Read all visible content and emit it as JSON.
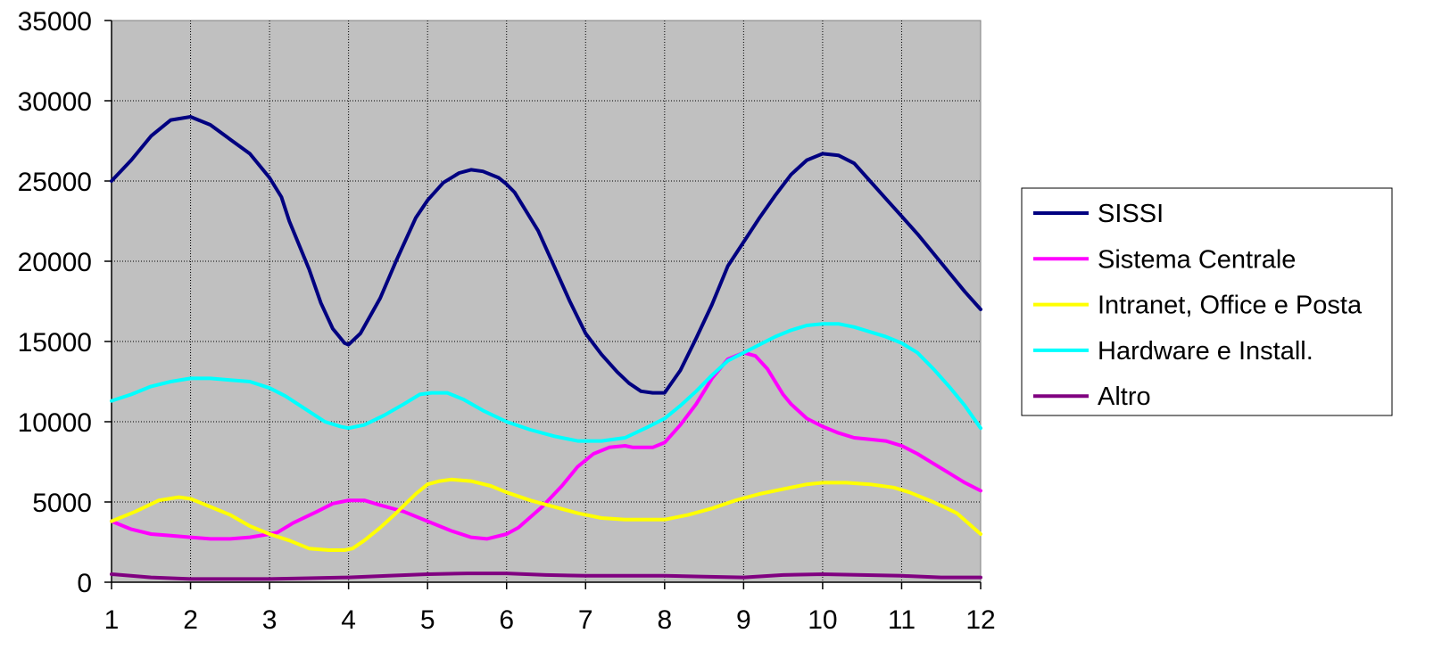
{
  "chart_data": {
    "type": "line",
    "title": "",
    "xlabel": "",
    "ylabel": "",
    "x": [
      1,
      2,
      3,
      4,
      5,
      6,
      7,
      8,
      9,
      10,
      11,
      12
    ],
    "x_ticks": [
      "1",
      "2",
      "3",
      "4",
      "5",
      "6",
      "7",
      "8",
      "9",
      "10",
      "11",
      "12"
    ],
    "ylim": [
      0,
      35000
    ],
    "y_ticks": [
      "0",
      "5000",
      "10000",
      "15000",
      "20000",
      "25000",
      "30000",
      "35000"
    ],
    "grid": true,
    "legend_position": "right",
    "background_color": "#c0c0c0",
    "series": [
      {
        "name": "SISSI",
        "color": "#000080",
        "points": [
          [
            1,
            25000
          ],
          [
            1.25,
            26300
          ],
          [
            1.5,
            27800
          ],
          [
            1.75,
            28800
          ],
          [
            2,
            29000
          ],
          [
            2.25,
            28500
          ],
          [
            2.5,
            27600
          ],
          [
            2.75,
            26700
          ],
          [
            3,
            25200
          ],
          [
            3.15,
            24000
          ],
          [
            3.25,
            22500
          ],
          [
            3.5,
            19500
          ],
          [
            3.65,
            17400
          ],
          [
            3.8,
            15800
          ],
          [
            3.95,
            14900
          ],
          [
            4,
            14800
          ],
          [
            4.15,
            15500
          ],
          [
            4.4,
            17700
          ],
          [
            4.6,
            20000
          ],
          [
            4.85,
            22700
          ],
          [
            5,
            23800
          ],
          [
            5.2,
            24900
          ],
          [
            5.4,
            25500
          ],
          [
            5.55,
            25700
          ],
          [
            5.7,
            25600
          ],
          [
            5.9,
            25200
          ],
          [
            6,
            24800
          ],
          [
            6.1,
            24300
          ],
          [
            6.4,
            21900
          ],
          [
            6.6,
            19700
          ],
          [
            6.8,
            17500
          ],
          [
            7,
            15500
          ],
          [
            7.2,
            14200
          ],
          [
            7.4,
            13100
          ],
          [
            7.55,
            12400
          ],
          [
            7.7,
            11900
          ],
          [
            7.85,
            11800
          ],
          [
            8,
            11800
          ],
          [
            8.2,
            13200
          ],
          [
            8.4,
            15200
          ],
          [
            8.6,
            17300
          ],
          [
            8.8,
            19700
          ],
          [
            9,
            21200
          ],
          [
            9.2,
            22700
          ],
          [
            9.4,
            24100
          ],
          [
            9.6,
            25400
          ],
          [
            9.8,
            26300
          ],
          [
            10,
            26700
          ],
          [
            10.2,
            26600
          ],
          [
            10.4,
            26100
          ],
          [
            10.6,
            25000
          ],
          [
            10.8,
            23900
          ],
          [
            11,
            22800
          ],
          [
            11.2,
            21700
          ],
          [
            11.4,
            20500
          ],
          [
            11.6,
            19300
          ],
          [
            11.8,
            18100
          ],
          [
            12,
            17000
          ]
        ]
      },
      {
        "name": "Sistema Centrale",
        "color": "#ff00ff",
        "points": [
          [
            1,
            3800
          ],
          [
            1.25,
            3300
          ],
          [
            1.5,
            3000
          ],
          [
            1.75,
            2900
          ],
          [
            2,
            2800
          ],
          [
            2.25,
            2700
          ],
          [
            2.5,
            2700
          ],
          [
            2.75,
            2800
          ],
          [
            3,
            3000
          ],
          [
            3.1,
            3100
          ],
          [
            3.3,
            3700
          ],
          [
            3.6,
            4400
          ],
          [
            3.8,
            4900
          ],
          [
            4,
            5100
          ],
          [
            4.2,
            5100
          ],
          [
            4.4,
            4800
          ],
          [
            4.7,
            4400
          ],
          [
            5,
            3800
          ],
          [
            5.3,
            3200
          ],
          [
            5.55,
            2800
          ],
          [
            5.75,
            2700
          ],
          [
            6,
            3000
          ],
          [
            6.15,
            3400
          ],
          [
            6.45,
            4700
          ],
          [
            6.7,
            6000
          ],
          [
            6.9,
            7200
          ],
          [
            7.1,
            8000
          ],
          [
            7.3,
            8400
          ],
          [
            7.5,
            8500
          ],
          [
            7.6,
            8400
          ],
          [
            7.85,
            8400
          ],
          [
            8,
            8700
          ],
          [
            8.2,
            9800
          ],
          [
            8.4,
            11100
          ],
          [
            8.6,
            12700
          ],
          [
            8.8,
            13900
          ],
          [
            9,
            14300
          ],
          [
            9.15,
            14100
          ],
          [
            9.3,
            13300
          ],
          [
            9.5,
            11700
          ],
          [
            9.6,
            11100
          ],
          [
            9.8,
            10200
          ],
          [
            10,
            9700
          ],
          [
            10.2,
            9300
          ],
          [
            10.4,
            9000
          ],
          [
            10.6,
            8900
          ],
          [
            10.8,
            8800
          ],
          [
            11,
            8500
          ],
          [
            11.2,
            8000
          ],
          [
            11.4,
            7400
          ],
          [
            11.6,
            6800
          ],
          [
            11.8,
            6200
          ],
          [
            12,
            5700
          ]
        ]
      },
      {
        "name": "Intranet, Office e Posta",
        "color": "#ffff00",
        "points": [
          [
            1,
            3800
          ],
          [
            1.3,
            4400
          ],
          [
            1.6,
            5100
          ],
          [
            1.85,
            5300
          ],
          [
            2,
            5200
          ],
          [
            2.25,
            4700
          ],
          [
            2.5,
            4200
          ],
          [
            2.75,
            3500
          ],
          [
            3,
            3000
          ],
          [
            3.25,
            2600
          ],
          [
            3.5,
            2100
          ],
          [
            3.75,
            2000
          ],
          [
            3.95,
            2000
          ],
          [
            4.05,
            2100
          ],
          [
            4.2,
            2600
          ],
          [
            4.4,
            3400
          ],
          [
            4.6,
            4300
          ],
          [
            4.85,
            5500
          ],
          [
            5,
            6100
          ],
          [
            5.15,
            6300
          ],
          [
            5.3,
            6400
          ],
          [
            5.55,
            6300
          ],
          [
            5.8,
            6000
          ],
          [
            6,
            5600
          ],
          [
            6.3,
            5100
          ],
          [
            6.6,
            4700
          ],
          [
            6.9,
            4300
          ],
          [
            7.2,
            4000
          ],
          [
            7.5,
            3900
          ],
          [
            7.8,
            3900
          ],
          [
            8,
            3900
          ],
          [
            8.3,
            4200
          ],
          [
            8.6,
            4600
          ],
          [
            8.9,
            5100
          ],
          [
            9.2,
            5500
          ],
          [
            9.5,
            5800
          ],
          [
            9.8,
            6100
          ],
          [
            10,
            6200
          ],
          [
            10.3,
            6200
          ],
          [
            10.6,
            6100
          ],
          [
            10.9,
            5900
          ],
          [
            11.1,
            5600
          ],
          [
            11.4,
            5000
          ],
          [
            11.7,
            4300
          ],
          [
            12,
            3000
          ]
        ]
      },
      {
        "name": "Hardware e Install.",
        "color": "#00ffff",
        "points": [
          [
            1,
            11300
          ],
          [
            1.25,
            11700
          ],
          [
            1.5,
            12200
          ],
          [
            1.75,
            12500
          ],
          [
            2,
            12700
          ],
          [
            2.25,
            12700
          ],
          [
            2.5,
            12600
          ],
          [
            2.75,
            12500
          ],
          [
            3,
            12100
          ],
          [
            3.2,
            11600
          ],
          [
            3.45,
            10800
          ],
          [
            3.7,
            10000
          ],
          [
            3.9,
            9700
          ],
          [
            4,
            9600
          ],
          [
            4.2,
            9800
          ],
          [
            4.45,
            10400
          ],
          [
            4.7,
            11100
          ],
          [
            4.9,
            11700
          ],
          [
            5.05,
            11800
          ],
          [
            5.25,
            11800
          ],
          [
            5.45,
            11400
          ],
          [
            5.7,
            10700
          ],
          [
            6,
            10000
          ],
          [
            6.3,
            9500
          ],
          [
            6.6,
            9100
          ],
          [
            6.9,
            8800
          ],
          [
            7.2,
            8800
          ],
          [
            7.5,
            9000
          ],
          [
            7.8,
            9700
          ],
          [
            8,
            10200
          ],
          [
            8.2,
            11000
          ],
          [
            8.4,
            11900
          ],
          [
            8.6,
            12900
          ],
          [
            8.8,
            13800
          ],
          [
            9,
            14300
          ],
          [
            9.2,
            14800
          ],
          [
            9.4,
            15300
          ],
          [
            9.6,
            15700
          ],
          [
            9.8,
            16000
          ],
          [
            10,
            16100
          ],
          [
            10.2,
            16100
          ],
          [
            10.4,
            15900
          ],
          [
            10.6,
            15600
          ],
          [
            10.8,
            15300
          ],
          [
            11,
            14900
          ],
          [
            11.2,
            14300
          ],
          [
            11.4,
            13300
          ],
          [
            11.6,
            12200
          ],
          [
            11.8,
            11000
          ],
          [
            12,
            9600
          ]
        ]
      },
      {
        "name": "Altro",
        "color": "#800080",
        "points": [
          [
            1,
            500
          ],
          [
            1.5,
            300
          ],
          [
            2,
            200
          ],
          [
            2.5,
            200
          ],
          [
            3,
            200
          ],
          [
            3.5,
            250
          ],
          [
            4,
            300
          ],
          [
            4.5,
            400
          ],
          [
            5,
            500
          ],
          [
            5.5,
            550
          ],
          [
            6,
            550
          ],
          [
            6.5,
            450
          ],
          [
            7,
            400
          ],
          [
            7.5,
            400
          ],
          [
            8,
            400
          ],
          [
            8.5,
            350
          ],
          [
            9,
            300
          ],
          [
            9.5,
            450
          ],
          [
            10,
            500
          ],
          [
            10.5,
            450
          ],
          [
            11,
            400
          ],
          [
            11.5,
            300
          ],
          [
            12,
            300
          ]
        ]
      }
    ]
  }
}
